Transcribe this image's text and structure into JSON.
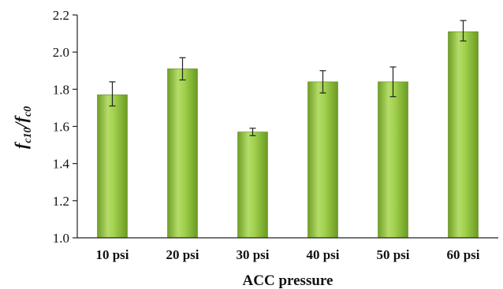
{
  "chart_data": {
    "type": "bar",
    "categories": [
      "10 psi",
      "20 psi",
      "30 psi",
      "40 psi",
      "50 psi",
      "60 psi"
    ],
    "values": [
      1.77,
      1.91,
      1.57,
      1.84,
      1.84,
      2.11
    ],
    "error_plus": [
      0.07,
      0.06,
      0.02,
      0.06,
      0.08,
      0.06
    ],
    "error_minus": [
      0.06,
      0.06,
      0.02,
      0.06,
      0.08,
      0.05
    ],
    "ylim": [
      1.0,
      2.2
    ],
    "yticks": [
      "1.0",
      "1.2",
      "1.4",
      "1.6",
      "1.8",
      "2.0",
      "2.2"
    ],
    "xlabel": "ACC pressure",
    "ylabel": {
      "main1": "f",
      "sub1": "c10",
      "sep": "/",
      "main2": "f",
      "sub2": "c0"
    },
    "bar_color": "#8cbf3a",
    "grid": false,
    "legend": "none"
  }
}
